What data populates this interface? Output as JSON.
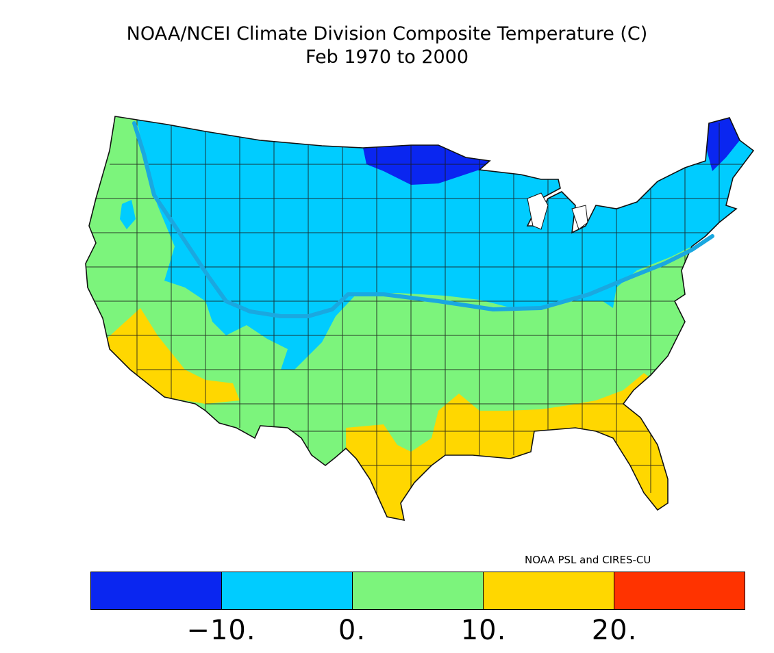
{
  "title": "NOAA/NCEI Climate Division Composite Temperature (C)",
  "subtitle": "Feb 1970 to 2000",
  "credit": "NOAA PSL and CIRES-CU",
  "legend": {
    "colors": [
      "#0a26f0",
      "#00ccff",
      "#7cf47c",
      "#ffd700",
      "#ff3300"
    ],
    "tick_labels": [
      "−10.",
      "0.",
      "10.",
      "20."
    ]
  },
  "map": {
    "region": "Contiguous United States climate divisions",
    "fill_colors": {
      "below_-10": "#0a26f0",
      "-10_to_0": "#00ccff",
      "0_to_10": "#7cf47c",
      "10_to_20": "#ffd700"
    },
    "overlay_line_color": "#1aa8e0"
  }
}
